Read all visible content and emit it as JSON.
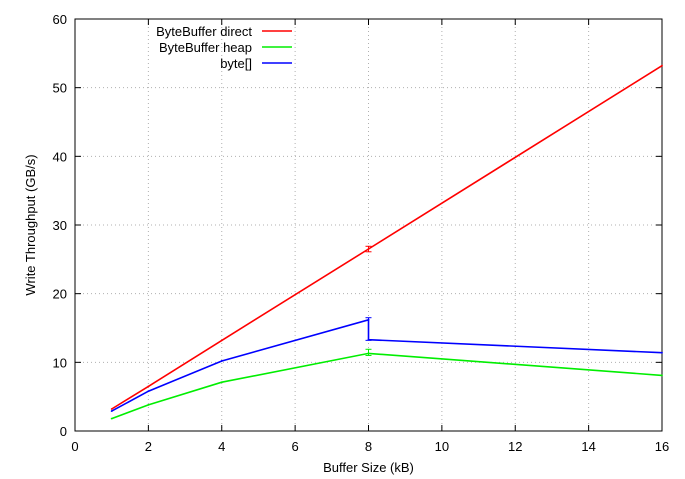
{
  "chart_data": {
    "type": "line",
    "title": "",
    "xlabel": "Buffer Size (kB)",
    "ylabel": "Write Throughput (GB/s)",
    "xlim": [
      0,
      16
    ],
    "ylim": [
      0,
      60
    ],
    "x_ticks": [
      0,
      2,
      4,
      6,
      8,
      10,
      12,
      14,
      16
    ],
    "y_ticks": [
      0,
      10,
      20,
      30,
      40,
      50,
      60
    ],
    "grid": true,
    "legend_position": "top-left",
    "series": [
      {
        "name": "ByteBuffer direct",
        "color": "#ff0000",
        "points": [
          [
            1,
            3.2
          ],
          [
            2,
            6.5
          ],
          [
            4,
            13.2
          ],
          [
            8,
            26.5
          ],
          [
            16,
            53.2
          ]
        ],
        "error_bars": [
          {
            "x": 8,
            "low": 26.1,
            "high": 26.9
          }
        ]
      },
      {
        "name": "ByteBuffer heap",
        "color": "#00ee00",
        "points": [
          [
            1,
            1.8
          ],
          [
            2,
            3.8
          ],
          [
            4,
            7.1
          ],
          [
            8,
            11.3
          ],
          [
            16,
            8.1
          ]
        ],
        "error_bars": [
          {
            "x": 8,
            "low": 11.0,
            "high": 11.9
          }
        ]
      },
      {
        "name": "byte[]",
        "color": "#0000ff",
        "points": [
          [
            1,
            2.9
          ],
          [
            2,
            5.8
          ],
          [
            4,
            10.2
          ],
          [
            8,
            16.2
          ],
          [
            8,
            13.3
          ],
          [
            16,
            11.4
          ]
        ],
        "error_bars": [
          {
            "x": 8,
            "low": 13.2,
            "high": 16.5
          }
        ]
      }
    ]
  }
}
